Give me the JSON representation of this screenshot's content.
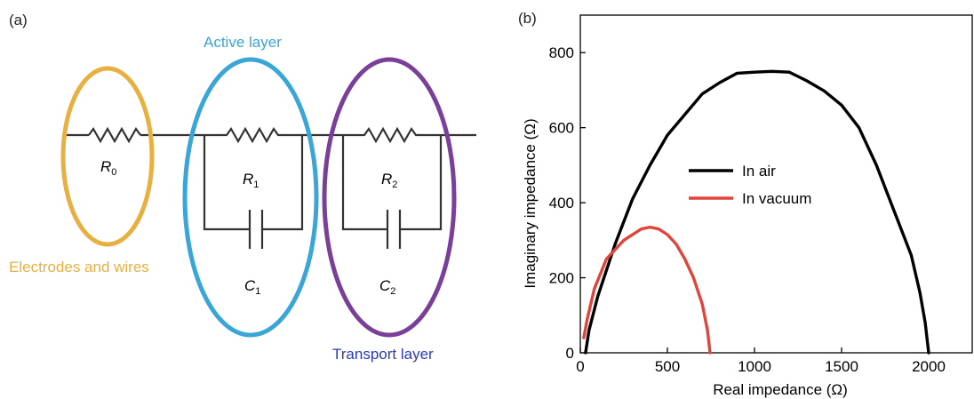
{
  "panel_a": {
    "label": "(a)",
    "colors": {
      "electrodes": "#e8b040",
      "active": "#3aa6d8",
      "transport": "#7a3f98",
      "transport_label": "#2a3ab8",
      "wire": "#333333"
    },
    "labels": {
      "active_layer": "Active layer",
      "electrodes_and_wires": "Electrodes and wires",
      "transport_layer": "Transport layer"
    },
    "components": {
      "r0": {
        "main": "R",
        "sub": "0"
      },
      "r1": {
        "main": "R",
        "sub": "1"
      },
      "r2": {
        "main": "R",
        "sub": "2"
      },
      "c1": {
        "main": "C",
        "sub": "1"
      },
      "c2": {
        "main": "C",
        "sub": "2"
      }
    }
  },
  "chart_data": {
    "type": "line",
    "panel_label": "(b)",
    "title": "",
    "xlabel": "Real impedance (Ω)",
    "ylabel": "Imaginary impedance (Ω)",
    "xlim": [
      0,
      2250
    ],
    "ylim": [
      0,
      900
    ],
    "xticks": [
      0,
      500,
      1000,
      1500,
      2000
    ],
    "yticks": [
      0,
      200,
      400,
      600,
      800
    ],
    "grid": false,
    "legend_position": "center",
    "series": [
      {
        "name": "In air",
        "color": "#000000",
        "points": [
          [
            30,
            0
          ],
          [
            50,
            60
          ],
          [
            100,
            150
          ],
          [
            200,
            290
          ],
          [
            300,
            410
          ],
          [
            400,
            500
          ],
          [
            500,
            580
          ],
          [
            700,
            690
          ],
          [
            800,
            720
          ],
          [
            900,
            745
          ],
          [
            1000,
            748
          ],
          [
            1100,
            750
          ],
          [
            1200,
            748
          ],
          [
            1300,
            725
          ],
          [
            1400,
            698
          ],
          [
            1500,
            660
          ],
          [
            1600,
            600
          ],
          [
            1700,
            500
          ],
          [
            1800,
            380
          ],
          [
            1900,
            260
          ],
          [
            1950,
            160
          ],
          [
            1980,
            80
          ],
          [
            2000,
            0
          ]
        ]
      },
      {
        "name": "In vacuum",
        "color": "#e0443a",
        "points": [
          [
            20,
            40
          ],
          [
            40,
            90
          ],
          [
            80,
            170
          ],
          [
            150,
            250
          ],
          [
            250,
            300
          ],
          [
            350,
            330
          ],
          [
            400,
            335
          ],
          [
            450,
            330
          ],
          [
            500,
            315
          ],
          [
            550,
            290
          ],
          [
            600,
            250
          ],
          [
            650,
            200
          ],
          [
            700,
            130
          ],
          [
            730,
            60
          ],
          [
            745,
            0
          ]
        ]
      }
    ]
  }
}
